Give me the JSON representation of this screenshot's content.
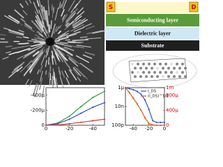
{
  "schematic": {
    "source": "S",
    "drain": "D",
    "layers": [
      "Semiconducting layer",
      "Dielectric layer",
      "Substrate"
    ]
  },
  "chart_data": [
    {
      "type": "line",
      "x": [
        0,
        -10,
        -20,
        -30,
        -40,
        -50
      ],
      "series": [
        {
          "color": "#2e9e3a",
          "values": [
            0,
            -3e-05,
            -0.00012,
            -0.00025,
            -0.00037,
            -0.00045
          ]
        },
        {
          "color": "#2a4fd6",
          "values": [
            0,
            -2e-05,
            -8e-05,
            -0.00016,
            -0.00024,
            -0.0003
          ]
        },
        {
          "color": "#d83a2a",
          "values": [
            0,
            -5e-06,
            -2e-05,
            -4e-05,
            -6e-05,
            -8e-05
          ]
        }
      ],
      "xlim": [
        0,
        -50
      ],
      "xticks": [
        0,
        -20,
        -40
      ],
      "ylim": [
        0,
        -0.0005
      ],
      "yticks": [
        {
          "value": -0.0004,
          "label": "-400μ"
        },
        {
          "value": -0.0002,
          "label": "-200μ"
        },
        0
      ]
    },
    {
      "type": "line",
      "x": [
        -50,
        -45,
        -40,
        -35,
        -30,
        -25,
        -20,
        -15,
        -10,
        -5,
        0
      ],
      "log_y": true,
      "series": [
        {
          "name": "I_DS",
          "color": "#2a4fd6",
          "values": [
            1e-06,
            8e-07,
            6e-07,
            4e-07,
            2e-07,
            5e-08,
            5e-09,
            3e-10,
            2e-10,
            2e-10,
            2e-10
          ]
        },
        {
          "name": "(I_DS)^1/2",
          "color": "#e05a10",
          "axis": "y2",
          "values": [
            0.001,
            0.00087,
            0.00072,
            0.00057,
            0.0004,
            0.0002,
            5e-05,
            1e-05,
            0,
            0,
            0
          ]
        }
      ],
      "xlim": [
        -50,
        0
      ],
      "xticks": [
        -40,
        -20,
        0
      ],
      "ylim": [
        1e-10,
        1e-06
      ],
      "yticks": [
        {
          "value": 1e-06,
          "label": "1μ"
        },
        {
          "value": 1e-08,
          "label": "10n"
        },
        {
          "value": 1e-10,
          "label": "100p"
        }
      ],
      "y2lim": [
        0,
        0.001
      ],
      "y2ticks": [
        {
          "value": 0.001,
          "label": "1m"
        },
        {
          "value": 0.0008,
          "label": "800μ"
        },
        {
          "value": 0.0004,
          "label": "400μ"
        },
        0
      ]
    }
  ]
}
